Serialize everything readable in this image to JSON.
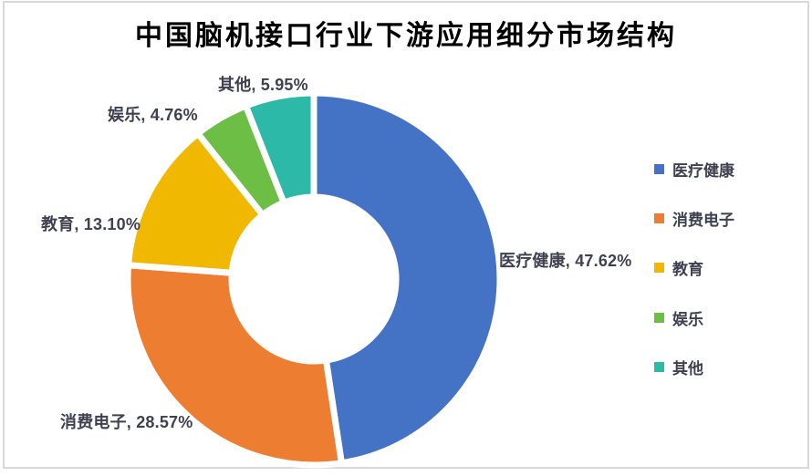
{
  "chart_data": {
    "type": "pie",
    "subtype": "donut",
    "title": "中国脑机接口行业下游应用细分市场结构",
    "categories": [
      "医疗健康",
      "消费电子",
      "教育",
      "娱乐",
      "其他"
    ],
    "values": [
      47.62,
      28.57,
      13.1,
      4.76,
      5.95
    ],
    "unit": "%",
    "colors": [
      "#4472C4",
      "#ED7D31",
      "#F0B800",
      "#6CBE45",
      "#2CB9A8"
    ],
    "data_labels": [
      "医疗健康, 47.62%",
      "消费电子, 28.57%",
      "教育, 13.10%",
      "娱乐, 4.76%",
      "其他, 5.95%"
    ],
    "legend_position": "right",
    "start_angle": 0,
    "direction": "clockwise",
    "inner_radius_ratio": 0.45,
    "grid": "off",
    "background_color": "#FFFFFF",
    "frame_border_color": "#D9D9D9",
    "label_color": "#3F4151",
    "title_color": "#000000",
    "separator_color": "#FFFFFF"
  }
}
